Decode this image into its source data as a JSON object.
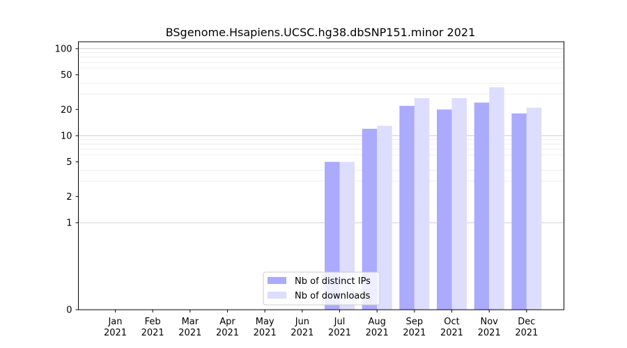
{
  "chart_data": {
    "type": "bar",
    "title": "BSgenome.Hsapiens.UCSC.hg38.dbSNP151.minor 2021",
    "xlabel": "",
    "ylabel": "",
    "yscale": "symlog",
    "ylim": [
      0,
      120
    ],
    "yticks": [
      0,
      1,
      2,
      5,
      10,
      20,
      50,
      100
    ],
    "categories": [
      {
        "month": "Jan",
        "year": "2021"
      },
      {
        "month": "Feb",
        "year": "2021"
      },
      {
        "month": "Mar",
        "year": "2021"
      },
      {
        "month": "Apr",
        "year": "2021"
      },
      {
        "month": "May",
        "year": "2021"
      },
      {
        "month": "Jun",
        "year": "2021"
      },
      {
        "month": "Jul",
        "year": "2021"
      },
      {
        "month": "Aug",
        "year": "2021"
      },
      {
        "month": "Sep",
        "year": "2021"
      },
      {
        "month": "Oct",
        "year": "2021"
      },
      {
        "month": "Nov",
        "year": "2021"
      },
      {
        "month": "Dec",
        "year": "2021"
      }
    ],
    "series": [
      {
        "name": "Nb of distinct IPs",
        "color": "#aaaaff",
        "values": [
          0,
          0,
          0,
          0,
          0,
          0,
          5,
          12,
          22,
          20,
          24,
          18
        ]
      },
      {
        "name": "Nb of downloads",
        "color": "#ddddff",
        "values": [
          0,
          0,
          0,
          0,
          0,
          0,
          5,
          13,
          27,
          27,
          36,
          21
        ]
      }
    ],
    "grid": true,
    "legend_position": "lower-center"
  }
}
